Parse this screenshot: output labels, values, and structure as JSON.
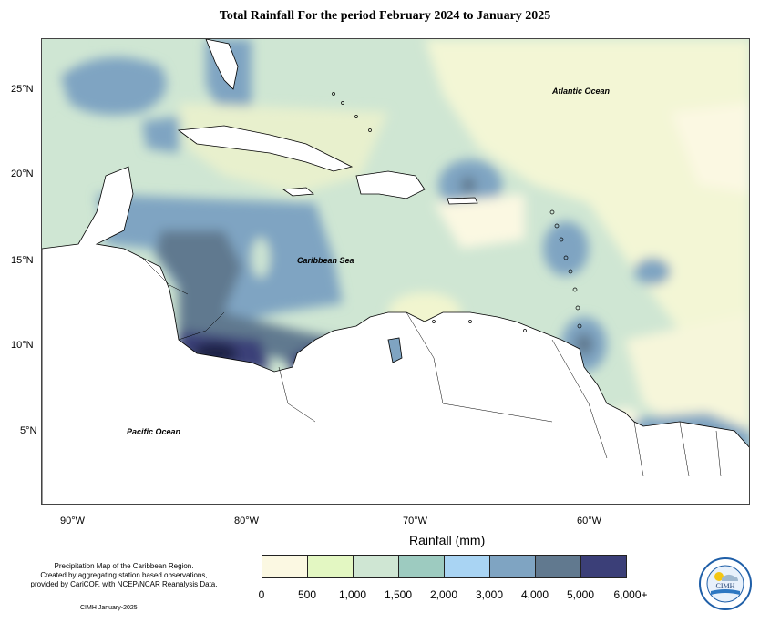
{
  "title": "Total Rainfall For the period February 2024 to January 2025",
  "map_labels": {
    "atlantic": "Atlantic Ocean",
    "caribbean": "Caribbean Sea",
    "pacific": "Pacific Ocean"
  },
  "axes": {
    "lat_labels": [
      "25°N",
      "20°N",
      "15°N",
      "10°N",
      "5°N"
    ],
    "lon_labels": [
      "90°W",
      "80°W",
      "70°W",
      "60°W"
    ]
  },
  "legend": {
    "title": "Rainfall (mm)",
    "ticks": [
      "0",
      "500",
      "1,000",
      "1,500",
      "2,000",
      "3,000",
      "4,000",
      "5,000",
      "6,000+"
    ],
    "colors": [
      "#fbf8e2",
      "#e3f7c2",
      "#cfe6d3",
      "#9dcbc0",
      "#a9d4f3",
      "#7fa4c2",
      "#61798f",
      "#3b3f78"
    ]
  },
  "caption": {
    "line1": "Precipitation Map of the Caribbean Region.",
    "line2": "Created by aggregating station based observations,",
    "line3": "provided by CariCOF, with NCEP/NCAR Reanalysis Data.",
    "credit": "CIMH January-2025"
  },
  "logo": {
    "text": "CIMH",
    "icon": "cimh-logo-icon"
  }
}
